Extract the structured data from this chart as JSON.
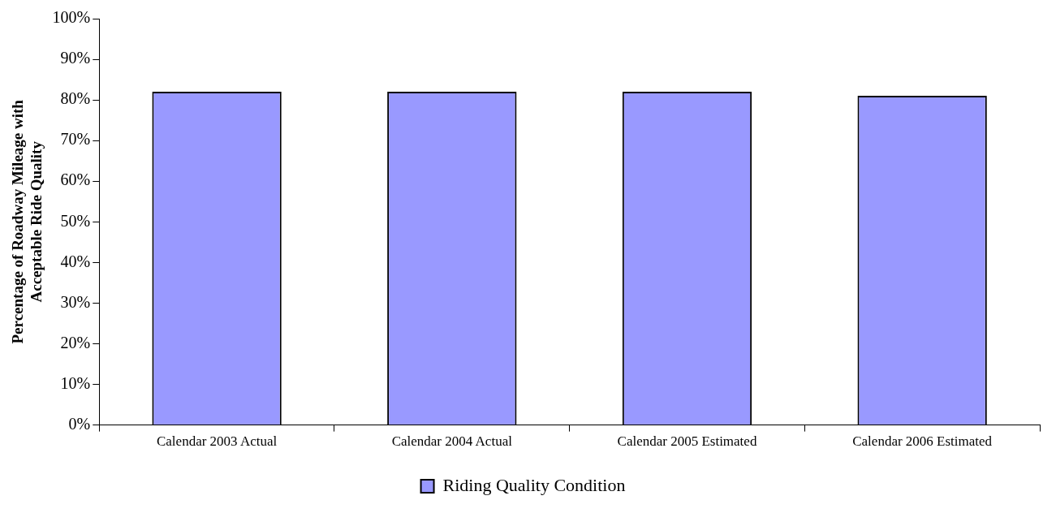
{
  "chart_data": {
    "type": "bar",
    "ylabel": "Percentage of Roadway Mileage with\nAcceptable Ride Quality",
    "categories": [
      "Calendar 2003 Actual",
      "Calendar 2004 Actual",
      "Calendar 2005 Estimated",
      "Calendar 2006 Estimated"
    ],
    "series": [
      {
        "name": "Riding Quality Condition",
        "color": "#9999ff",
        "values": [
          82,
          82,
          82,
          81
        ]
      }
    ],
    "ylim": [
      0,
      100
    ],
    "yticks": [
      {
        "value": 0,
        "label": "0%"
      },
      {
        "value": 10,
        "label": "10%"
      },
      {
        "value": 20,
        "label": "20%"
      },
      {
        "value": 30,
        "label": "30%"
      },
      {
        "value": 40,
        "label": "40%"
      },
      {
        "value": 50,
        "label": "50%"
      },
      {
        "value": 60,
        "label": "60%"
      },
      {
        "value": 70,
        "label": "70%"
      },
      {
        "value": 80,
        "label": "80%"
      },
      {
        "value": 90,
        "label": "90%"
      },
      {
        "value": 100,
        "label": "100%"
      }
    ],
    "legend": "bottom",
    "grid": false
  }
}
